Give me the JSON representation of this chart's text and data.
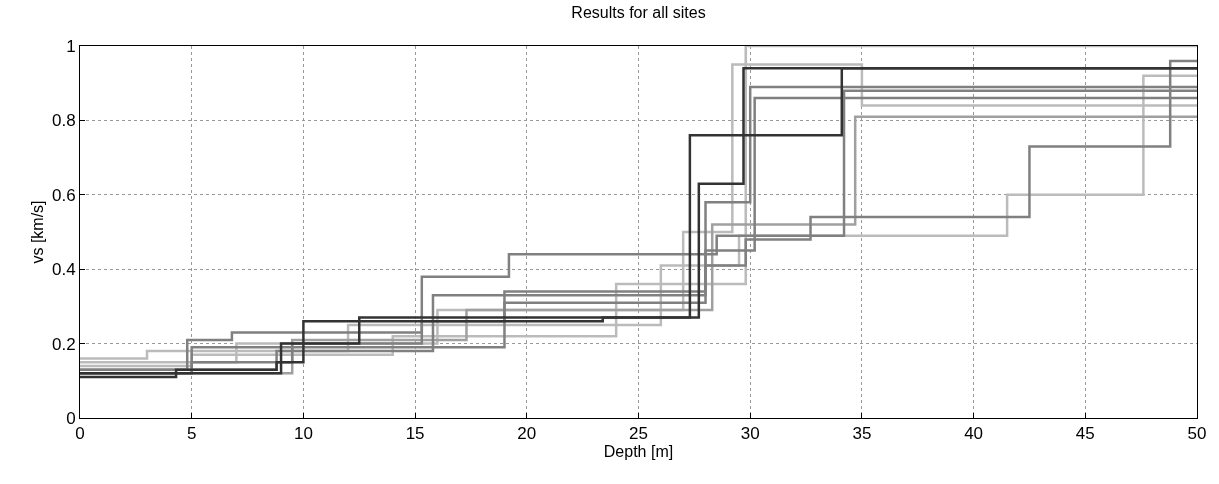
{
  "chart_data": {
    "type": "step",
    "title": "Results for all sites",
    "xlabel": "Depth [m]",
    "ylabel": "vs [km/s]",
    "xlim": [
      0,
      50
    ],
    "ylim": [
      0,
      1
    ],
    "xticks": [
      0,
      5,
      10,
      15,
      20,
      25,
      30,
      35,
      40,
      45,
      50
    ],
    "yticks": [
      0,
      0.2,
      0.4,
      0.6,
      0.8,
      1
    ],
    "grid": true,
    "series": [
      {
        "color": "#bbbbbb",
        "x": [
          0,
          3,
          12,
          26,
          29.5,
          41.5,
          47.6,
          50
        ],
        "values": [
          0.16,
          0.18,
          0.25,
          0.41,
          0.49,
          0.6,
          0.92,
          0.92
        ]
      },
      {
        "color": "#bbbbbb",
        "x": [
          0,
          5,
          14,
          24,
          29.8,
          50
        ],
        "values": [
          0.14,
          0.17,
          0.22,
          0.36,
          1.0,
          1.0
        ]
      },
      {
        "color": "#bbbbbb",
        "x": [
          0,
          7,
          16,
          27,
          29.2,
          35,
          50
        ],
        "values": [
          0.15,
          0.2,
          0.29,
          0.5,
          0.95,
          0.84,
          0.84
        ]
      },
      {
        "color": "#a0a0a0",
        "x": [
          0,
          9.5,
          17.3,
          28.3,
          34.7,
          50
        ],
        "values": [
          0.12,
          0.21,
          0.29,
          0.52,
          0.81,
          0.81
        ]
      },
      {
        "color": "#808080",
        "x": [
          0,
          5,
          19,
          28,
          30.2,
          50
        ],
        "values": [
          0.12,
          0.19,
          0.34,
          0.45,
          0.86,
          0.86
        ]
      },
      {
        "color": "#808080",
        "x": [
          0,
          8.8,
          15.8,
          28,
          30,
          50
        ],
        "values": [
          0.13,
          0.18,
          0.33,
          0.58,
          0.89,
          0.89
        ]
      },
      {
        "color": "#808080",
        "x": [
          0,
          4.8,
          6.8,
          15.3,
          19.2,
          28.5,
          34.2,
          50
        ],
        "values": [
          0.13,
          0.21,
          0.23,
          0.38,
          0.44,
          0.49,
          0.88,
          0.88
        ]
      },
      {
        "color": "#808080",
        "x": [
          0,
          5,
          9.5,
          15.3,
          19,
          28,
          29.8,
          32.7,
          42.5,
          48.8,
          50
        ],
        "values": [
          0.12,
          0.15,
          0.2,
          0.26,
          0.31,
          0.41,
          0.48,
          0.54,
          0.73,
          0.96,
          0.96
        ]
      },
      {
        "color": "#333333",
        "x": [
          0,
          9,
          12.5,
          27.3,
          34.1,
          50
        ],
        "values": [
          0.12,
          0.2,
          0.27,
          0.76,
          0.94,
          0.94
        ]
      },
      {
        "color": "#333333",
        "x": [
          0,
          4.3,
          8.8,
          10,
          23.4,
          27.7,
          29.7,
          50
        ],
        "values": [
          0.11,
          0.13,
          0.15,
          0.26,
          0.27,
          0.63,
          0.94,
          0.94
        ]
      }
    ]
  }
}
